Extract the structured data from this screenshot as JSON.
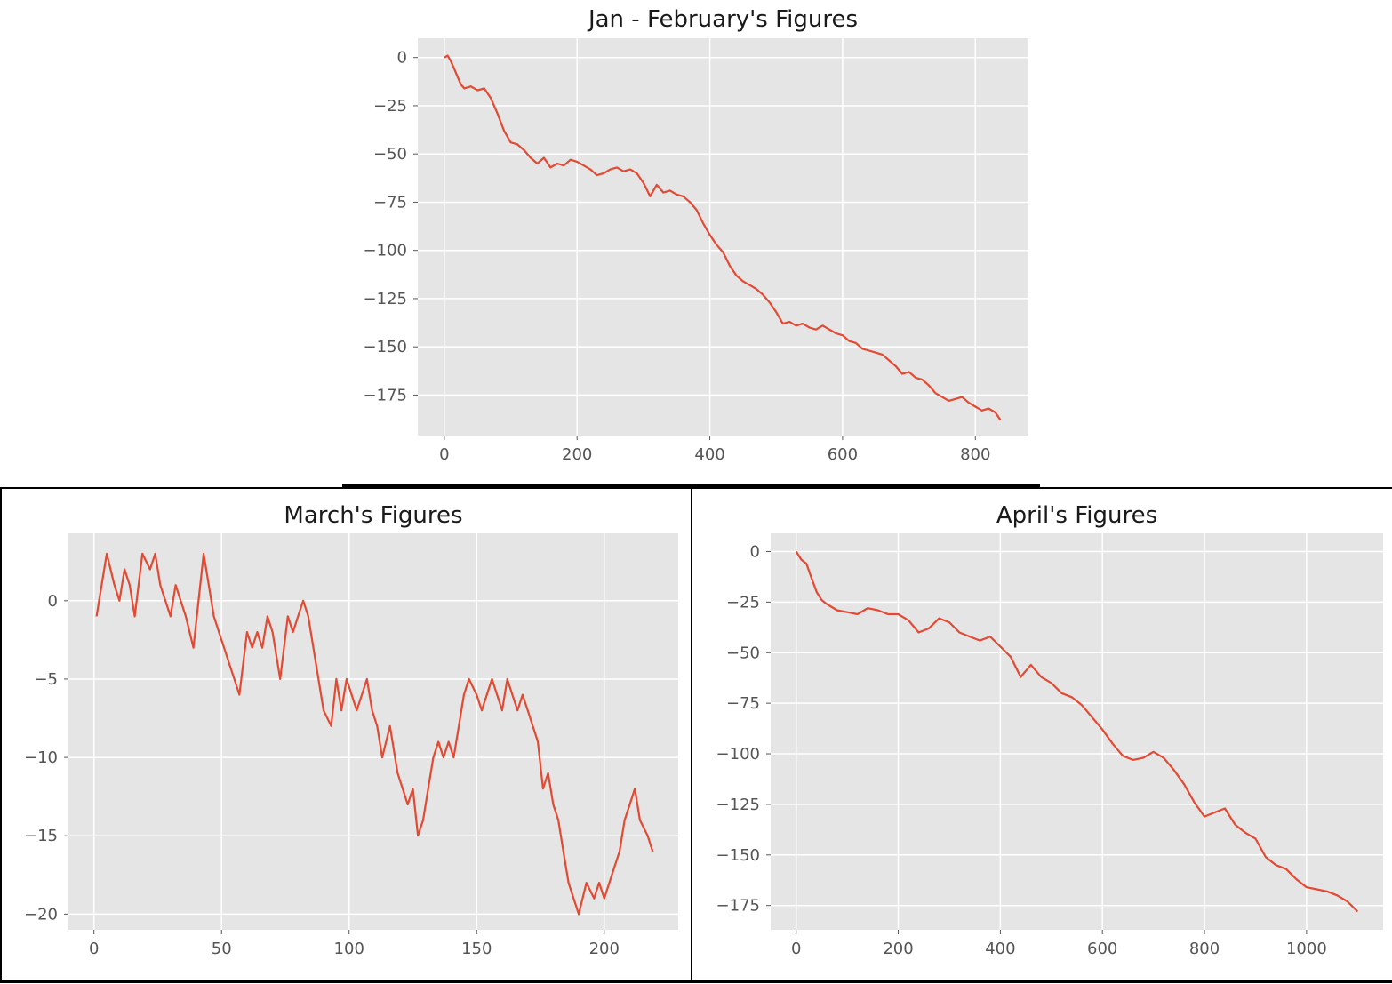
{
  "chart_data": [
    {
      "type": "line",
      "title": "Jan - February's Figures",
      "xlim": [
        -40,
        880
      ],
      "ylim": [
        -196,
        10
      ],
      "xticks": [
        0,
        200,
        400,
        600,
        800
      ],
      "yticks": [
        0,
        -25,
        -50,
        -75,
        -100,
        -125,
        -150,
        -175
      ],
      "xticklabels": [
        "0",
        "200",
        "400",
        "600",
        "800"
      ],
      "yticklabels": [
        "0",
        "−25",
        "−50",
        "−75",
        "−100",
        "−125",
        "−150",
        "−175"
      ],
      "grid": true,
      "color": "#E24A33",
      "series": [
        {
          "x": [
            0,
            5,
            10,
            15,
            20,
            25,
            30,
            40,
            50,
            60,
            70,
            80,
            90,
            100,
            110,
            120,
            130,
            140,
            150,
            160,
            170,
            180,
            190,
            200,
            210,
            220,
            230,
            240,
            250,
            260,
            270,
            280,
            290,
            300,
            310,
            320,
            330,
            340,
            350,
            360,
            370,
            380,
            390,
            400,
            410,
            420,
            430,
            440,
            450,
            460,
            470,
            480,
            490,
            500,
            510,
            520,
            530,
            540,
            550,
            560,
            570,
            580,
            590,
            600,
            610,
            620,
            630,
            640,
            650,
            660,
            670,
            680,
            690,
            700,
            710,
            720,
            730,
            740,
            750,
            760,
            770,
            780,
            790,
            800,
            810,
            820,
            830,
            838
          ],
          "y": [
            0,
            1,
            -2,
            -6,
            -10,
            -14,
            -16,
            -15,
            -17,
            -16,
            -21,
            -29,
            -38,
            -44,
            -45,
            -48,
            -52,
            -55,
            -52,
            -57,
            -55,
            -56,
            -53,
            -54,
            -56,
            -58,
            -61,
            -60,
            -58,
            -57,
            -59,
            -58,
            -60,
            -65,
            -72,
            -66,
            -70,
            -69,
            -71,
            -72,
            -75,
            -79,
            -86,
            -92,
            -97,
            -101,
            -108,
            -113,
            -116,
            -118,
            -120,
            -123,
            -127,
            -132,
            -138,
            -137,
            -139,
            -138,
            -140,
            -141,
            -139,
            -141,
            -143,
            -144,
            -147,
            -148,
            -151,
            -152,
            -153,
            -154,
            -157,
            -160,
            -164,
            -163,
            -166,
            -167,
            -170,
            -174,
            -176,
            -178,
            -177,
            -176,
            -179,
            -181,
            -183,
            -182,
            -184,
            -188
          ]
        }
      ]
    },
    {
      "type": "line",
      "title": "March's Figures",
      "xlim": [
        -10,
        229
      ],
      "ylim": [
        -21,
        4.3
      ],
      "xticks": [
        0,
        50,
        100,
        150,
        200
      ],
      "yticks": [
        0,
        -5,
        -10,
        -15,
        -20
      ],
      "xticklabels": [
        "0",
        "50",
        "100",
        "150",
        "200"
      ],
      "yticklabels": [
        "0",
        "−5",
        "−10",
        "−15",
        "−20"
      ],
      "grid": true,
      "color": "#E24A33",
      "series": [
        {
          "x": [
            1,
            5,
            8,
            10,
            12,
            14,
            16,
            19,
            22,
            24,
            26,
            28,
            30,
            32,
            34,
            36,
            39,
            43,
            47,
            49,
            51,
            53,
            55,
            57,
            60,
            62,
            64,
            66,
            68,
            70,
            73,
            76,
            78,
            80,
            82,
            84,
            87,
            90,
            93,
            95,
            97,
            99,
            101,
            103,
            105,
            107,
            109,
            111,
            113,
            116,
            119,
            121,
            123,
            125,
            127,
            129,
            131,
            133,
            135,
            137,
            139,
            141,
            143,
            145,
            147,
            150,
            152,
            154,
            156,
            158,
            160,
            162,
            164,
            166,
            168,
            170,
            172,
            174,
            176,
            178,
            180,
            182,
            184,
            186,
            188,
            190,
            193,
            196,
            198,
            200,
            202,
            204,
            206,
            208,
            210,
            212,
            214,
            217,
            219
          ],
          "y": [
            -1,
            3,
            1,
            0,
            2,
            1,
            -1,
            3,
            2,
            3,
            1,
            0,
            -1,
            1,
            0,
            -1,
            -3,
            3,
            -1,
            -2,
            -3,
            -4,
            -5,
            -6,
            -2,
            -3,
            -2,
            -3,
            -1,
            -2,
            -5,
            -1,
            -2,
            -1,
            0,
            -1,
            -4,
            -7,
            -8,
            -5,
            -7,
            -5,
            -6,
            -7,
            -6,
            -5,
            -7,
            -8,
            -10,
            -8,
            -11,
            -12,
            -13,
            -12,
            -15,
            -14,
            -12,
            -10,
            -9,
            -10,
            -9,
            -10,
            -8,
            -6,
            -5,
            -6,
            -7,
            -6,
            -5,
            -6,
            -7,
            -5,
            -6,
            -7,
            -6,
            -7,
            -8,
            -9,
            -12,
            -11,
            -13,
            -14,
            -16,
            -18,
            -19,
            -20,
            -18,
            -19,
            -18,
            -19,
            -18,
            -17,
            -16,
            -14,
            -13,
            -12,
            -14,
            -15,
            -16
          ]
        }
      ]
    },
    {
      "type": "line",
      "title": "April's Figures",
      "xlim": [
        -50,
        1150
      ],
      "ylim": [
        -187,
        9
      ],
      "xticks": [
        0,
        200,
        400,
        600,
        800,
        1000
      ],
      "yticks": [
        0,
        -25,
        -50,
        -75,
        -100,
        -125,
        -150,
        -175
      ],
      "xticklabels": [
        "0",
        "200",
        "400",
        "600",
        "800",
        "1000"
      ],
      "yticklabels": [
        "0",
        "−25",
        "−50",
        "−75",
        "−100",
        "−125",
        "−150",
        "−175"
      ],
      "grid": true,
      "color": "#E24A33",
      "series": [
        {
          "x": [
            0,
            10,
            20,
            30,
            40,
            50,
            60,
            80,
            100,
            120,
            140,
            160,
            180,
            200,
            220,
            240,
            260,
            280,
            300,
            320,
            340,
            360,
            380,
            400,
            420,
            440,
            460,
            480,
            500,
            520,
            540,
            560,
            580,
            600,
            620,
            640,
            660,
            680,
            700,
            720,
            740,
            760,
            780,
            800,
            820,
            840,
            860,
            880,
            900,
            920,
            940,
            960,
            980,
            1000,
            1020,
            1040,
            1060,
            1080,
            1100
          ],
          "y": [
            0,
            -4,
            -6,
            -13,
            -20,
            -24,
            -26,
            -29,
            -30,
            -31,
            -28,
            -29,
            -31,
            -31,
            -34,
            -40,
            -38,
            -33,
            -35,
            -40,
            -42,
            -44,
            -42,
            -47,
            -52,
            -62,
            -56,
            -62,
            -65,
            -70,
            -72,
            -76,
            -82,
            -88,
            -95,
            -101,
            -103,
            -102,
            -99,
            -102,
            -108,
            -115,
            -124,
            -131,
            -129,
            -127,
            -135,
            -139,
            -142,
            -151,
            -155,
            -157,
            -162,
            -166,
            -167,
            -168,
            -170,
            -173,
            -178
          ]
        }
      ]
    }
  ]
}
